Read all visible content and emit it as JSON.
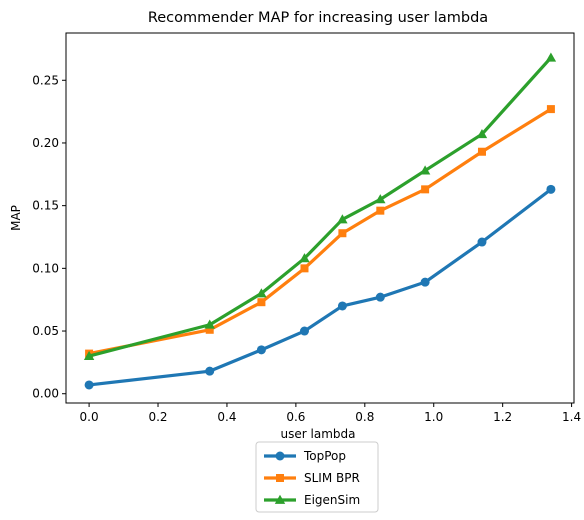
{
  "chart_data": {
    "type": "line",
    "title": "Recommender MAP for increasing user lambda",
    "xlabel": "user lambda",
    "ylabel": "MAP",
    "xlim": [
      -0.067,
      1.407
    ],
    "ylim": [
      -0.0074,
      0.2877
    ],
    "xticks": [
      "0.0",
      "0.2",
      "0.4",
      "0.6",
      "0.8",
      "1.0",
      "1.2",
      "1.4"
    ],
    "yticks": [
      "0.00",
      "0.05",
      "0.10",
      "0.15",
      "0.20",
      "0.25"
    ],
    "grid": false,
    "legend_position": "below",
    "x": [
      0.0,
      0.35,
      0.5,
      0.625,
      0.735,
      0.845,
      0.975,
      1.14,
      1.34
    ],
    "series": [
      {
        "name": "TopPop",
        "color": "#1f77b4",
        "marker": "circle",
        "values": [
          0.007,
          0.018,
          0.035,
          0.05,
          0.07,
          0.077,
          0.089,
          0.121,
          0.163
        ]
      },
      {
        "name": "SLIM BPR",
        "color": "#ff7f0e",
        "marker": "square",
        "values": [
          0.032,
          0.051,
          0.073,
          0.1,
          0.128,
          0.146,
          0.163,
          0.193,
          0.227
        ]
      },
      {
        "name": "EigenSim",
        "color": "#2ca02c",
        "marker": "triangle",
        "values": [
          0.03,
          0.055,
          0.08,
          0.108,
          0.139,
          0.155,
          0.178,
          0.207,
          0.268
        ]
      }
    ]
  }
}
